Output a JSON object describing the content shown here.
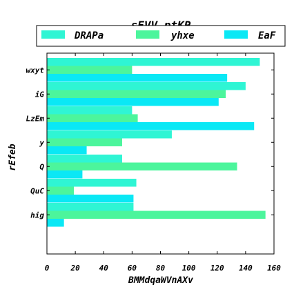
{
  "chart_data": {
    "type": "bar",
    "orientation": "horizontal",
    "title": "sEVV  ptKP",
    "xlabel": "BMMdqaWVnAXv",
    "ylabel": "rEfeb",
    "categories": [
      "wxyt",
      "iG",
      "LzEm",
      "y",
      "Q",
      "QuC",
      "hig"
    ],
    "xlim": [
      0,
      160
    ],
    "xticks": [
      0,
      20,
      40,
      60,
      80,
      100,
      120,
      140,
      160
    ],
    "grid": false,
    "legend_position": "top",
    "series": [
      {
        "name": "DRAPa",
        "color": "#2ff5d4",
        "values": [
          150,
          140,
          60,
          88,
          53,
          63,
          61
        ]
      },
      {
        "name": "yhxe",
        "color": "#4cf59c",
        "values": [
          60,
          126,
          64,
          53,
          134,
          19,
          154
        ]
      },
      {
        "name": "EaF",
        "color": "#0ae8f5",
        "values": [
          127,
          121,
          146,
          28,
          25,
          61,
          12
        ]
      }
    ]
  }
}
